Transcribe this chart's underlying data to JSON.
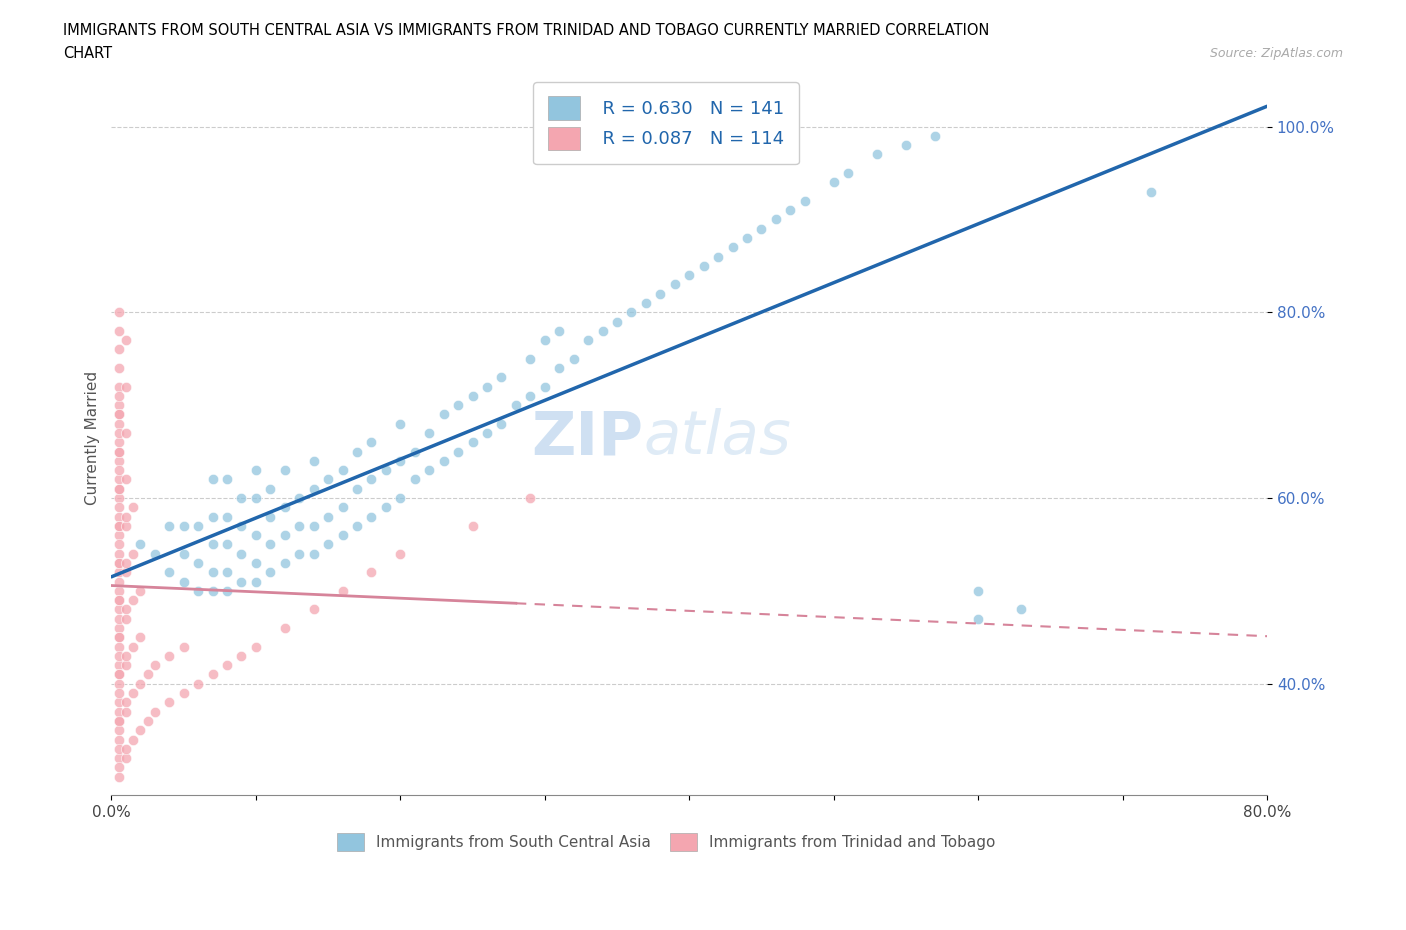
{
  "title_line1": "IMMIGRANTS FROM SOUTH CENTRAL ASIA VS IMMIGRANTS FROM TRINIDAD AND TOBAGO CURRENTLY MARRIED CORRELATION",
  "title_line2": "CHART",
  "source_text": "Source: ZipAtlas.com",
  "ylabel": "Currently Married",
  "xlim": [
    0.0,
    0.8
  ],
  "ylim": [
    0.28,
    1.05
  ],
  "x_ticks": [
    0.0,
    0.1,
    0.2,
    0.3,
    0.4,
    0.5,
    0.6,
    0.7,
    0.8
  ],
  "y_ticks": [
    0.4,
    0.6,
    0.8,
    1.0
  ],
  "y_tick_labels": [
    "40.0%",
    "60.0%",
    "80.0%",
    "100.0%"
  ],
  "blue_color": "#92c5de",
  "pink_color": "#f4a6b0",
  "trend_blue": "#2166ac",
  "trend_pink_solid": "#d6849a",
  "trend_pink_dash": "#d6849a",
  "R_blue": 0.63,
  "N_blue": 141,
  "R_pink": 0.087,
  "N_pink": 114,
  "legend_text_color": "#2166ac",
  "blue_scatter_x": [
    0.02,
    0.03,
    0.04,
    0.04,
    0.05,
    0.05,
    0.05,
    0.06,
    0.06,
    0.06,
    0.07,
    0.07,
    0.07,
    0.07,
    0.07,
    0.08,
    0.08,
    0.08,
    0.08,
    0.08,
    0.09,
    0.09,
    0.09,
    0.09,
    0.1,
    0.1,
    0.1,
    0.1,
    0.1,
    0.11,
    0.11,
    0.11,
    0.11,
    0.12,
    0.12,
    0.12,
    0.12,
    0.13,
    0.13,
    0.13,
    0.14,
    0.14,
    0.14,
    0.14,
    0.15,
    0.15,
    0.15,
    0.16,
    0.16,
    0.16,
    0.17,
    0.17,
    0.17,
    0.18,
    0.18,
    0.18,
    0.19,
    0.19,
    0.2,
    0.2,
    0.2,
    0.21,
    0.21,
    0.22,
    0.22,
    0.23,
    0.23,
    0.24,
    0.24,
    0.25,
    0.25,
    0.26,
    0.26,
    0.27,
    0.27,
    0.28,
    0.29,
    0.29,
    0.3,
    0.3,
    0.31,
    0.31,
    0.32,
    0.33,
    0.34,
    0.35,
    0.36,
    0.37,
    0.38,
    0.39,
    0.4,
    0.41,
    0.42,
    0.43,
    0.44,
    0.45,
    0.46,
    0.47,
    0.48,
    0.5,
    0.51,
    0.53,
    0.55,
    0.57,
    0.6,
    0.6,
    0.63,
    0.72
  ],
  "blue_scatter_y": [
    0.55,
    0.54,
    0.52,
    0.57,
    0.51,
    0.54,
    0.57,
    0.5,
    0.53,
    0.57,
    0.5,
    0.52,
    0.55,
    0.58,
    0.62,
    0.5,
    0.52,
    0.55,
    0.58,
    0.62,
    0.51,
    0.54,
    0.57,
    0.6,
    0.51,
    0.53,
    0.56,
    0.6,
    0.63,
    0.52,
    0.55,
    0.58,
    0.61,
    0.53,
    0.56,
    0.59,
    0.63,
    0.54,
    0.57,
    0.6,
    0.54,
    0.57,
    0.61,
    0.64,
    0.55,
    0.58,
    0.62,
    0.56,
    0.59,
    0.63,
    0.57,
    0.61,
    0.65,
    0.58,
    0.62,
    0.66,
    0.59,
    0.63,
    0.6,
    0.64,
    0.68,
    0.62,
    0.65,
    0.63,
    0.67,
    0.64,
    0.69,
    0.65,
    0.7,
    0.66,
    0.71,
    0.67,
    0.72,
    0.68,
    0.73,
    0.7,
    0.71,
    0.75,
    0.72,
    0.77,
    0.74,
    0.78,
    0.75,
    0.77,
    0.78,
    0.79,
    0.8,
    0.81,
    0.82,
    0.83,
    0.84,
    0.85,
    0.86,
    0.87,
    0.88,
    0.89,
    0.9,
    0.91,
    0.92,
    0.94,
    0.95,
    0.97,
    0.98,
    0.99,
    0.5,
    0.47,
    0.48,
    0.93
  ],
  "pink_scatter_x": [
    0.005,
    0.005,
    0.005,
    0.005,
    0.005,
    0.005,
    0.005,
    0.005,
    0.005,
    0.005,
    0.005,
    0.005,
    0.005,
    0.005,
    0.005,
    0.005,
    0.005,
    0.005,
    0.005,
    0.005,
    0.005,
    0.005,
    0.005,
    0.005,
    0.005,
    0.005,
    0.005,
    0.005,
    0.005,
    0.005,
    0.005,
    0.005,
    0.005,
    0.005,
    0.005,
    0.005,
    0.005,
    0.005,
    0.005,
    0.005,
    0.005,
    0.005,
    0.005,
    0.005,
    0.005,
    0.005,
    0.005,
    0.005,
    0.005,
    0.005,
    0.005,
    0.005,
    0.005,
    0.005,
    0.005,
    0.005,
    0.01,
    0.01,
    0.01,
    0.01,
    0.01,
    0.01,
    0.01,
    0.01,
    0.01,
    0.01,
    0.01,
    0.01,
    0.01,
    0.01,
    0.01,
    0.01,
    0.015,
    0.015,
    0.015,
    0.015,
    0.015,
    0.015,
    0.02,
    0.02,
    0.02,
    0.02,
    0.025,
    0.025,
    0.03,
    0.03,
    0.04,
    0.04,
    0.05,
    0.05,
    0.06,
    0.07,
    0.08,
    0.09,
    0.1,
    0.12,
    0.14,
    0.16,
    0.18,
    0.2,
    0.25,
    0.29
  ],
  "pink_scatter_y": [
    0.3,
    0.32,
    0.34,
    0.36,
    0.38,
    0.4,
    0.42,
    0.44,
    0.46,
    0.48,
    0.5,
    0.52,
    0.54,
    0.56,
    0.58,
    0.6,
    0.62,
    0.64,
    0.66,
    0.68,
    0.7,
    0.72,
    0.74,
    0.76,
    0.78,
    0.8,
    0.33,
    0.35,
    0.37,
    0.39,
    0.41,
    0.43,
    0.45,
    0.47,
    0.49,
    0.51,
    0.53,
    0.55,
    0.57,
    0.59,
    0.61,
    0.63,
    0.65,
    0.67,
    0.69,
    0.71,
    0.31,
    0.36,
    0.41,
    0.45,
    0.49,
    0.53,
    0.57,
    0.61,
    0.65,
    0.69,
    0.32,
    0.37,
    0.42,
    0.47,
    0.52,
    0.57,
    0.62,
    0.67,
    0.72,
    0.77,
    0.33,
    0.38,
    0.43,
    0.48,
    0.53,
    0.58,
    0.34,
    0.39,
    0.44,
    0.49,
    0.54,
    0.59,
    0.35,
    0.4,
    0.45,
    0.5,
    0.36,
    0.41,
    0.37,
    0.42,
    0.38,
    0.43,
    0.39,
    0.44,
    0.4,
    0.41,
    0.42,
    0.43,
    0.44,
    0.46,
    0.48,
    0.5,
    0.52,
    0.54,
    0.57,
    0.6
  ]
}
